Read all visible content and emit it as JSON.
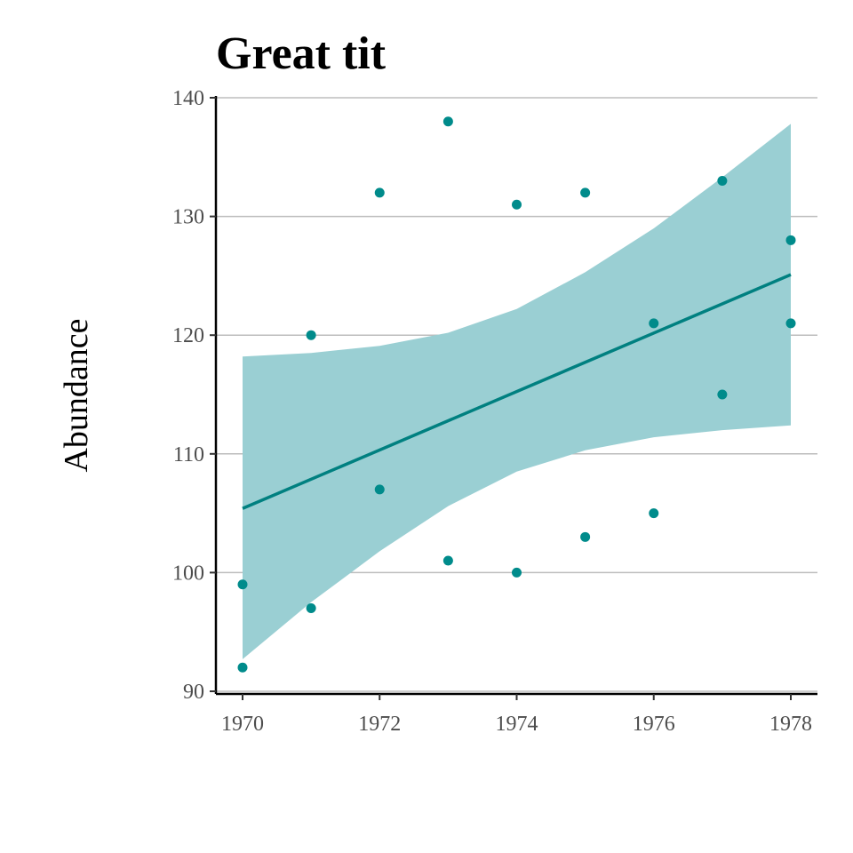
{
  "chart_data": {
    "type": "scatter",
    "title": "Great tit",
    "xlabel": "",
    "ylabel": "Abundance",
    "xlim": [
      1969.6,
      1978.4
    ],
    "ylim": [
      89.8,
      140.3
    ],
    "x_ticks": [
      1970,
      1972,
      1974,
      1976,
      1978
    ],
    "y_ticks": [
      90,
      100,
      110,
      120,
      130,
      140
    ],
    "grid": "horizontal major",
    "legend": "none",
    "colors": {
      "points": "#008B8B",
      "line": "#008080",
      "ribbon": "#9ACFD3"
    },
    "series": [
      {
        "x": [
          1970,
          1970,
          1971,
          1971,
          1972,
          1972,
          1973,
          1973,
          1974,
          1974,
          1975,
          1975,
          1976,
          1976,
          1977,
          1977,
          1978,
          1978
        ],
        "y": [
          99,
          92,
          120,
          97,
          132,
          107,
          138,
          101,
          131,
          100,
          132,
          103,
          121,
          105,
          133,
          115,
          128,
          121
        ]
      }
    ],
    "trend": {
      "x": [
        1970,
        1978
      ],
      "y": [
        105.4,
        125.1
      ]
    },
    "ribbon": {
      "x": [
        1970,
        1971,
        1972,
        1973,
        1974,
        1975,
        1976,
        1977,
        1978
      ],
      "lower": [
        92.7,
        97.5,
        101.8,
        105.6,
        108.5,
        110.3,
        111.4,
        112.0,
        112.4
      ],
      "upper": [
        118.2,
        118.5,
        119.1,
        120.2,
        122.2,
        125.3,
        129.0,
        133.3,
        137.8
      ]
    }
  }
}
